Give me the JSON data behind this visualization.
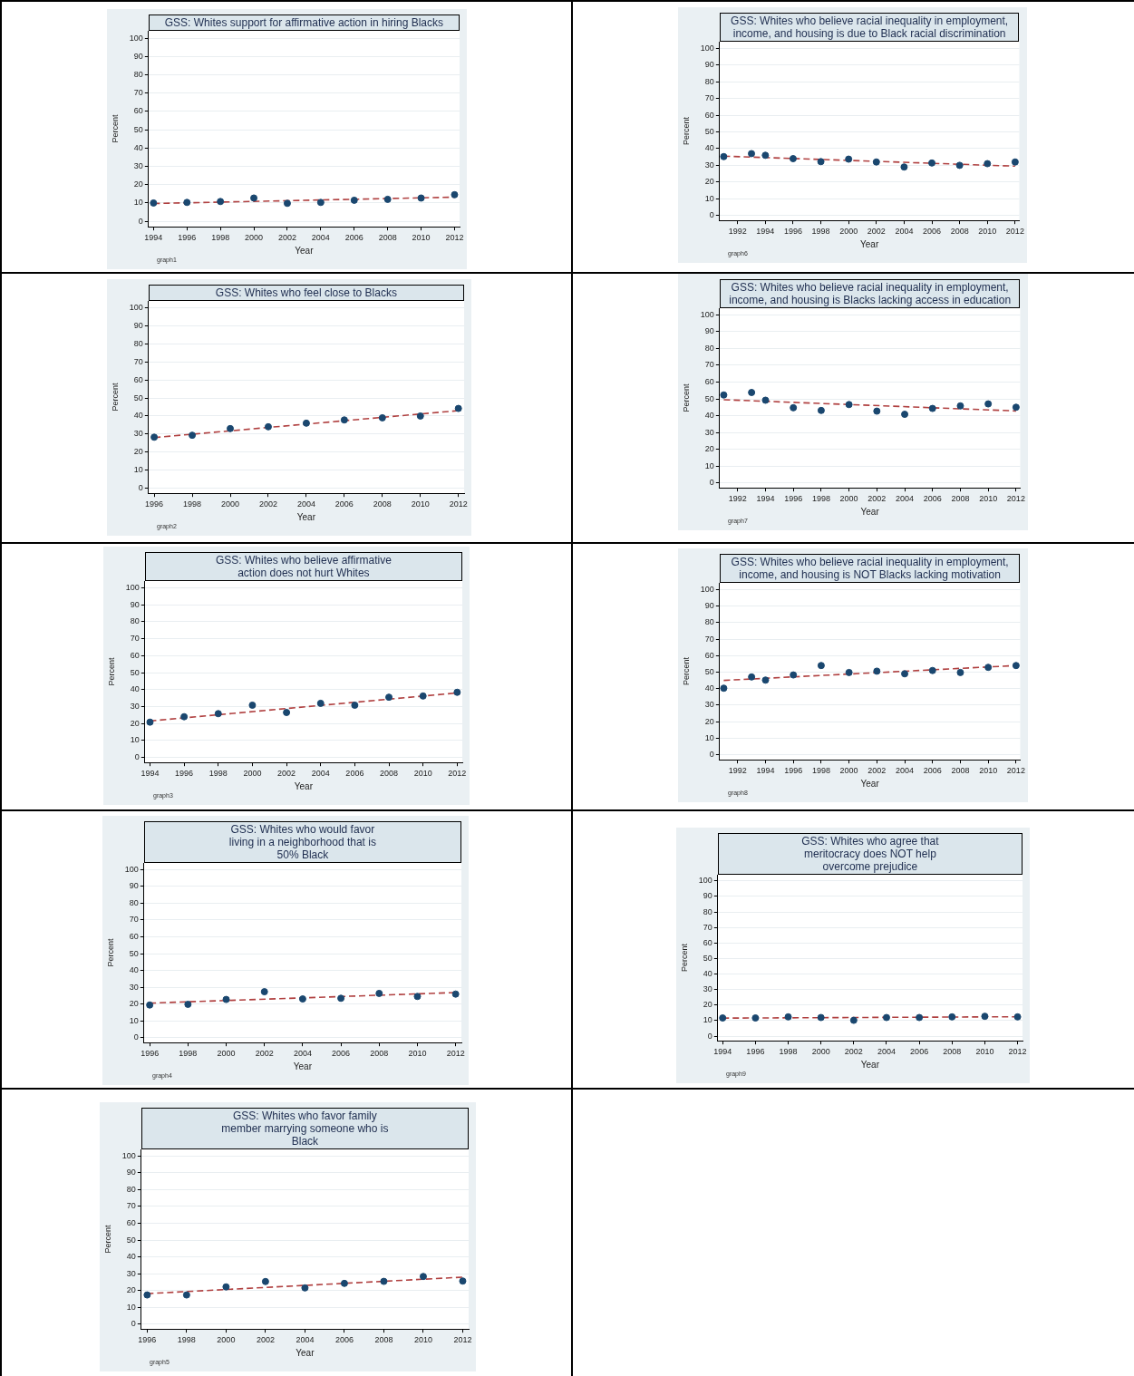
{
  "chart_data": [
    {
      "type": "scatter",
      "title": "GSS: Whites support for affirmative action in hiring Blacks",
      "xlabel": "Year",
      "ylabel": "Percent",
      "annotations": [
        "graph1"
      ],
      "x": [
        1994,
        1996,
        1998,
        2000,
        2002,
        2004,
        2006,
        2008,
        2010,
        2012
      ],
      "xlim": [
        1993.7,
        2012.3
      ],
      "xticks": [
        1994,
        1996,
        1998,
        2000,
        2002,
        2004,
        2006,
        2008,
        2010,
        2012
      ],
      "ylim": [
        -3,
        104
      ],
      "yticks": [
        0,
        10,
        20,
        30,
        40,
        50,
        60,
        70,
        80,
        90,
        100
      ],
      "grid": "y",
      "marker": "circle",
      "series": [
        {
          "type": "scatter",
          "color": "#1a476f",
          "values": [
            10,
            10.3,
            10.8,
            12.7,
            9.8,
            10.3,
            11.5,
            12,
            12.7,
            14.5
          ]
        },
        {
          "type": "line",
          "color": "#b04040",
          "line_style": "dashed",
          "marker": "none",
          "x": [
            1994,
            2012
          ],
          "values": [
            9.7,
            13.2
          ]
        }
      ]
    },
    {
      "type": "scatter",
      "title": "GSS: Whites who believe racial inequality in employment, income, and housing is due to Black racial discrimination",
      "xlabel": "Year",
      "ylabel": "Percent",
      "annotations": [
        "graph6"
      ],
      "x": [
        1991,
        1993,
        1994,
        1996,
        1998,
        2000,
        2002,
        2004,
        2006,
        2008,
        2010,
        2012
      ],
      "xlim": [
        1990.7,
        2012.3
      ],
      "xticks": [
        1992,
        1994,
        1996,
        1998,
        2000,
        2002,
        2004,
        2006,
        2008,
        2010,
        2012
      ],
      "ylim": [
        -3,
        104
      ],
      "yticks": [
        0,
        10,
        20,
        30,
        40,
        50,
        60,
        70,
        80,
        90,
        100
      ],
      "grid": "y",
      "marker": "circle",
      "series": [
        {
          "type": "scatter",
          "color": "#1a476f",
          "values": [
            35.2,
            37,
            36,
            34,
            32.2,
            33.7,
            32,
            29,
            31.4,
            30,
            31,
            32
          ]
        },
        {
          "type": "line",
          "color": "#b04040",
          "line_style": "dashed",
          "marker": "none",
          "x": [
            1991,
            2012
          ],
          "values": [
            35.5,
            29.5
          ]
        }
      ]
    },
    {
      "type": "scatter",
      "title": "GSS: Whites who feel close to Blacks",
      "xlabel": "Year",
      "ylabel": "Percent",
      "annotations": [
        "graph2"
      ],
      "x": [
        1996,
        1998,
        2000,
        2002,
        2004,
        2006,
        2008,
        2010,
        2012
      ],
      "xlim": [
        1995.7,
        2012.3
      ],
      "xticks": [
        1996,
        1998,
        2000,
        2002,
        2004,
        2006,
        2008,
        2010,
        2012
      ],
      "ylim": [
        -3,
        104
      ],
      "yticks": [
        0,
        10,
        20,
        30,
        40,
        50,
        60,
        70,
        80,
        90,
        100
      ],
      "grid": "y",
      "marker": "circle",
      "series": [
        {
          "type": "scatter",
          "color": "#1a476f",
          "values": [
            28.2,
            29.3,
            33,
            34,
            36,
            37.8,
            39,
            40,
            44.2
          ]
        },
        {
          "type": "line",
          "color": "#b04040",
          "line_style": "dashed",
          "marker": "none",
          "x": [
            1996,
            2012
          ],
          "values": [
            28,
            43
          ]
        }
      ]
    },
    {
      "type": "scatter",
      "title": "GSS: Whites who believe racial inequality in employment, income, and housing is Blacks lacking access in education",
      "xlabel": "Year",
      "ylabel": "Percent",
      "annotations": [
        "graph7"
      ],
      "x": [
        1991,
        1993,
        1994,
        1996,
        1998,
        2000,
        2002,
        2004,
        2006,
        2008,
        2010,
        2012
      ],
      "xlim": [
        1990.7,
        2012.3
      ],
      "xticks": [
        1992,
        1994,
        1996,
        1998,
        2000,
        2002,
        2004,
        2006,
        2008,
        2010,
        2012
      ],
      "ylim": [
        -3,
        104
      ],
      "yticks": [
        0,
        10,
        20,
        30,
        40,
        50,
        60,
        70,
        80,
        90,
        100
      ],
      "grid": "y",
      "marker": "circle",
      "series": [
        {
          "type": "scatter",
          "color": "#1a476f",
          "values": [
            52.3,
            53.8,
            49.2,
            44.7,
            43.1,
            46.6,
            42.7,
            40.8,
            44.3,
            45.8,
            47,
            45
          ]
        },
        {
          "type": "line",
          "color": "#b04040",
          "line_style": "dashed",
          "marker": "none",
          "x": [
            1991,
            2012
          ],
          "values": [
            49.5,
            42.8
          ]
        }
      ]
    },
    {
      "type": "scatter",
      "title": "GSS: Whites who believe affirmative action does not hurt Whites",
      "xlabel": "Year",
      "ylabel": "Percent",
      "annotations": [
        "graph3"
      ],
      "x": [
        1994,
        1996,
        1998,
        2000,
        2002,
        2004,
        2006,
        2008,
        2010,
        2012
      ],
      "xlim": [
        1993.7,
        2012.3
      ],
      "xticks": [
        1994,
        1996,
        1998,
        2000,
        2002,
        2004,
        2006,
        2008,
        2010,
        2012
      ],
      "ylim": [
        -3,
        104
      ],
      "yticks": [
        0,
        10,
        20,
        30,
        40,
        50,
        60,
        70,
        80,
        90,
        100
      ],
      "grid": "y",
      "marker": "circle",
      "series": [
        {
          "type": "scatter",
          "color": "#1a476f",
          "values": [
            20.8,
            24,
            25.8,
            30.8,
            26.5,
            31.9,
            30.8,
            35.5,
            36.2,
            38.4
          ]
        },
        {
          "type": "line",
          "color": "#b04040",
          "line_style": "dashed",
          "marker": "none",
          "x": [
            1994,
            2012
          ],
          "values": [
            21.5,
            38
          ]
        }
      ]
    },
    {
      "type": "scatter",
      "title": "GSS: Whites who believe racial inequality in employment, income, and housing is NOT Blacks lacking motivation",
      "xlabel": "Year",
      "ylabel": "Percent",
      "annotations": [
        "graph8"
      ],
      "x": [
        1991,
        1993,
        1994,
        1996,
        1998,
        2000,
        2002,
        2004,
        2006,
        2008,
        2010,
        2012
      ],
      "xlim": [
        1990.7,
        2012.3
      ],
      "xticks": [
        1992,
        1994,
        1996,
        1998,
        2000,
        2002,
        2004,
        2006,
        2008,
        2010,
        2012
      ],
      "ylim": [
        -3,
        104
      ],
      "yticks": [
        0,
        10,
        20,
        30,
        40,
        50,
        60,
        70,
        80,
        90,
        100
      ],
      "grid": "y",
      "marker": "circle",
      "series": [
        {
          "type": "scatter",
          "color": "#1a476f",
          "values": [
            40.3,
            47.1,
            45.2,
            48.3,
            54,
            49.8,
            50.6,
            49,
            51,
            49.8,
            52.9,
            54
          ]
        },
        {
          "type": "line",
          "color": "#b04040",
          "line_style": "dashed",
          "marker": "none",
          "x": [
            1991,
            2012
          ],
          "values": [
            45,
            54
          ]
        }
      ]
    },
    {
      "type": "scatter",
      "title": "GSS: Whites who would favor living in a neighborhood that is 50% Black",
      "xlabel": "Year",
      "ylabel": "Percent",
      "annotations": [
        "graph4"
      ],
      "x": [
        1996,
        1998,
        2000,
        2002,
        2004,
        2006,
        2008,
        2010,
        2012
      ],
      "xlim": [
        1995.7,
        2012.3
      ],
      "xticks": [
        1996,
        1998,
        2000,
        2002,
        2004,
        2006,
        2008,
        2010,
        2012
      ],
      "ylim": [
        -3,
        104
      ],
      "yticks": [
        0,
        10,
        20,
        30,
        40,
        50,
        60,
        70,
        80,
        90,
        100
      ],
      "grid": "y",
      "marker": "circle",
      "series": [
        {
          "type": "scatter",
          "color": "#1a476f",
          "values": [
            19.4,
            19.8,
            22.7,
            27.3,
            23,
            23.4,
            26.3,
            24.5,
            25.9
          ]
        },
        {
          "type": "line",
          "color": "#b04040",
          "line_style": "dashed",
          "marker": "none",
          "x": [
            1996,
            2012
          ],
          "values": [
            20.5,
            26.8
          ]
        }
      ]
    },
    {
      "type": "scatter",
      "title": "GSS: Whites who agree that meritocracy does NOT help overcome prejudice",
      "xlabel": "Year",
      "ylabel": "Percent",
      "annotations": [
        "graph9"
      ],
      "x": [
        1994,
        1996,
        1998,
        2000,
        2002,
        2004,
        2006,
        2008,
        2010,
        2012
      ],
      "xlim": [
        1993.7,
        2012.3
      ],
      "xticks": [
        1994,
        1996,
        1998,
        2000,
        2002,
        2004,
        2006,
        2008,
        2010,
        2012
      ],
      "ylim": [
        -3,
        104
      ],
      "yticks": [
        0,
        10,
        20,
        30,
        40,
        50,
        60,
        70,
        80,
        90,
        100
      ],
      "grid": "y",
      "marker": "circle",
      "series": [
        {
          "type": "scatter",
          "color": "#1a476f",
          "values": [
            11.7,
            11.7,
            12.4,
            12,
            10.2,
            12,
            12,
            12.4,
            12.8,
            12.4
          ]
        },
        {
          "type": "line",
          "color": "#b04040",
          "line_style": "dashed",
          "marker": "none",
          "x": [
            1994,
            2012
          ],
          "values": [
            11.6,
            12.5
          ]
        }
      ]
    },
    {
      "type": "scatter",
      "title": "GSS: Whites who favor family member marrying someone who is Black",
      "xlabel": "Year",
      "ylabel": "Percent",
      "annotations": [
        "graph5"
      ],
      "x": [
        1996,
        1998,
        2000,
        2002,
        2004,
        2006,
        2008,
        2010,
        2012
      ],
      "xlim": [
        1995.7,
        2012.3
      ],
      "xticks": [
        1996,
        1998,
        2000,
        2002,
        2004,
        2006,
        2008,
        2010,
        2012
      ],
      "ylim": [
        -3,
        104
      ],
      "yticks": [
        0,
        10,
        20,
        30,
        40,
        50,
        60,
        70,
        80,
        90,
        100
      ],
      "grid": "y",
      "marker": "circle",
      "series": [
        {
          "type": "scatter",
          "color": "#1a476f",
          "values": [
            17.3,
            17.3,
            22.1,
            25.3,
            21.5,
            24.2,
            25.4,
            28.3,
            25.6
          ]
        },
        {
          "type": "line",
          "color": "#b04040",
          "line_style": "dashed",
          "marker": "none",
          "x": [
            1996,
            2012
          ],
          "values": [
            18.1,
            27.9
          ]
        }
      ]
    }
  ]
}
